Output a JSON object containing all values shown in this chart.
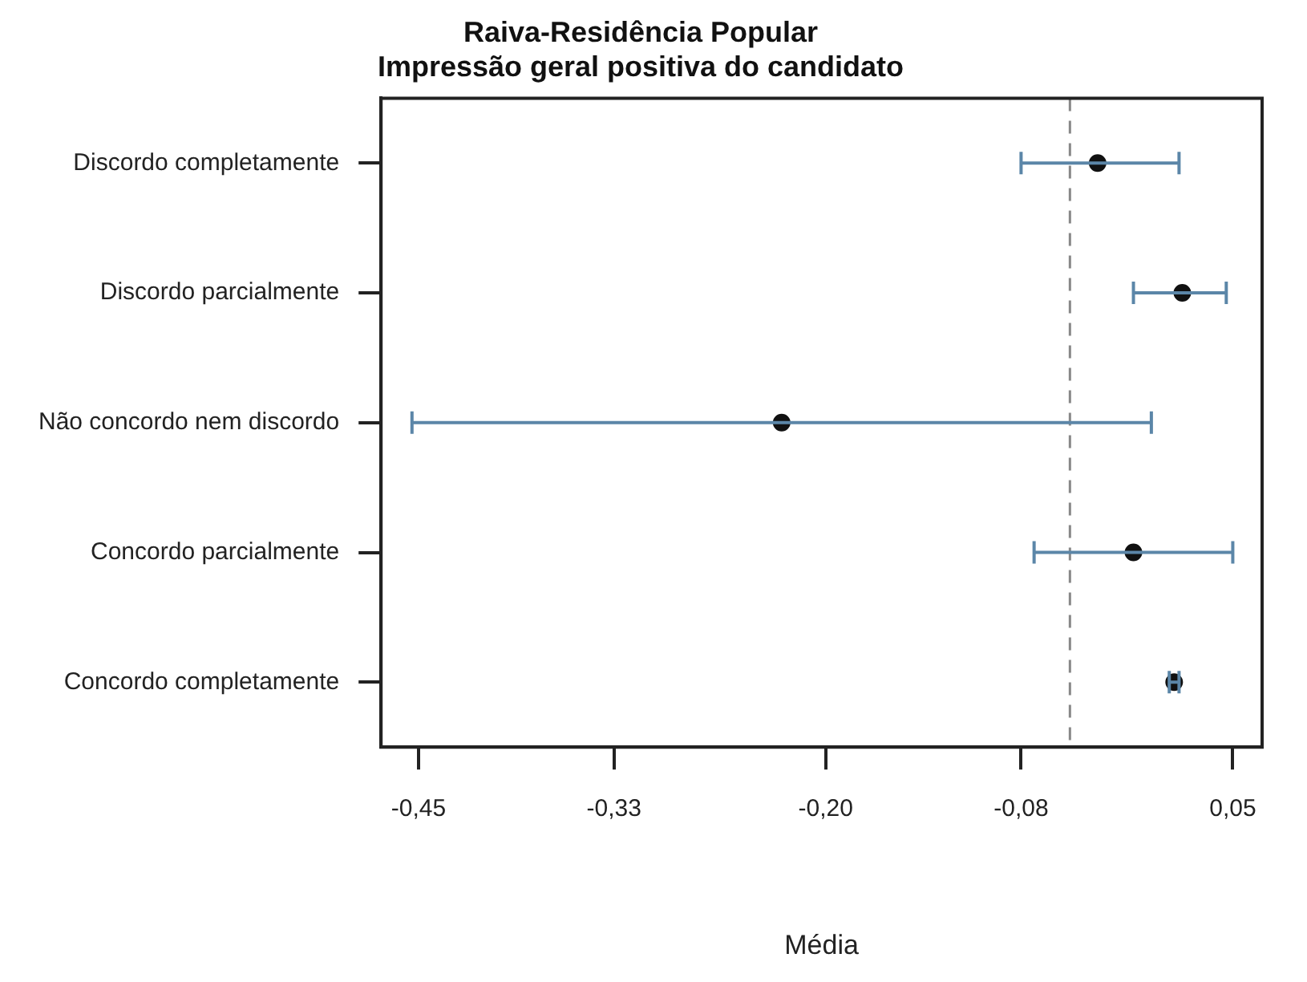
{
  "chart_data": {
    "type": "scatter",
    "orientation": "horizontal",
    "title": "Raiva-Residência Popular",
    "subtitle": "Impressão geral positiva do candidato",
    "xlabel": "Média",
    "categories": [
      "Discordo completamente",
      "Discordo parcialmente",
      "Não concordo nem discordo",
      "Concordo parcialmente",
      "Concordo completamente"
    ],
    "values": [
      -0.033,
      0.019,
      -0.227,
      -0.011,
      0.014
    ],
    "errors": [
      [
        -0.08,
        0.017
      ],
      [
        -0.011,
        0.046
      ],
      [
        -0.454,
        0.0
      ],
      [
        -0.072,
        0.05
      ],
      [
        0.011,
        0.017
      ]
    ],
    "color": "#111111",
    "marker": "circle",
    "xlim": [
      -0.473,
      0.068
    ],
    "xticks": [
      {
        "value": -0.45,
        "label": "-0,45"
      },
      {
        "value": -0.33,
        "label": "-0,33"
      },
      {
        "value": -0.2,
        "label": "-0,20"
      },
      {
        "value": -0.08,
        "label": "-0,08"
      },
      {
        "value": 0.05,
        "label": "0,05"
      }
    ],
    "ref_lines": [
      {
        "axis": "x",
        "value": -0.05,
        "color": "#888888",
        "line_style": "dashed"
      }
    ],
    "grid": false,
    "legend": false
  }
}
